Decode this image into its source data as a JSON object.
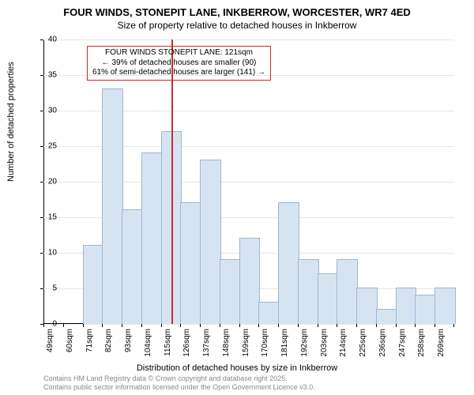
{
  "title_main": "FOUR WINDS, STONEPIT LANE, INKBERROW, WORCESTER, WR7 4ED",
  "title_sub": "Size of property relative to detached houses in Inkberrow",
  "y_axis_label": "Number of detached properties",
  "x_axis_label": "Distribution of detached houses by size in Inkberrow",
  "footer_line1": "Contains HM Land Registry data © Crown copyright and database right 2025.",
  "footer_line2": "Contains public sector information licensed under the Open Government Licence v3.0.",
  "chart": {
    "type": "histogram",
    "background_color": "#ffffff",
    "grid_color": "#e6e6e6",
    "bar_fill": "#d6e4f2",
    "bar_stroke": "#9bb8d3",
    "marker_color": "#cc2b2b",
    "annotation_border": "#cc2b2b",
    "axis_color": "#000000",
    "text_color": "#000000",
    "ylim": [
      0,
      40
    ],
    "ytick_step": 5,
    "title_fontsize": 13,
    "label_fontsize": 11,
    "tick_fontsize": 10,
    "bar_width_ratio": 1.0,
    "x_categories": [
      "49sqm",
      "60sqm",
      "71sqm",
      "82sqm",
      "93sqm",
      "104sqm",
      "115sqm",
      "126sqm",
      "137sqm",
      "148sqm",
      "159sqm",
      "170sqm",
      "181sqm",
      "192sqm",
      "203sqm",
      "214sqm",
      "225sqm",
      "236sqm",
      "247sqm",
      "258sqm",
      "269sqm"
    ],
    "values": [
      0,
      0,
      11,
      33,
      16,
      24,
      27,
      17,
      23,
      9,
      12,
      3,
      17,
      9,
      7,
      9,
      5,
      2,
      5,
      4,
      5
    ],
    "marker_position_sqm": 121,
    "x_range_sqm": [
      49,
      269
    ],
    "annotation": {
      "line1": "FOUR WINDS STONEPIT LANE: 121sqm",
      "line2": "← 39% of detached houses are smaller (90)",
      "line3": "61% of semi-detached houses are larger (141) →"
    }
  }
}
